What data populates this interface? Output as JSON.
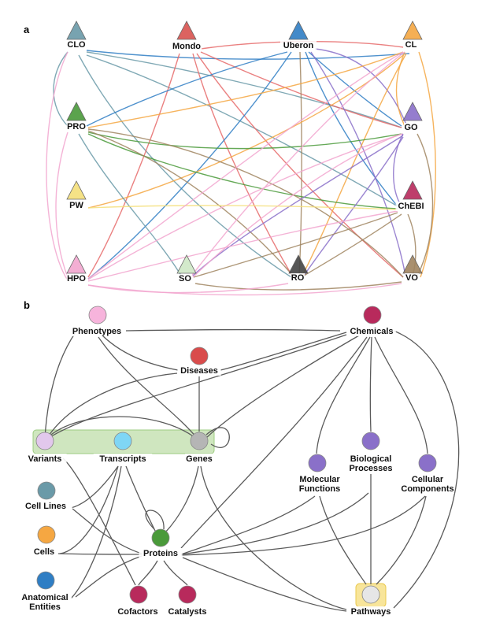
{
  "panel_a": {
    "label": "a",
    "nodes": {
      "CLO": {
        "label": "CLO",
        "color": "#6a9aa8"
      },
      "Mondo": {
        "label": "Mondo",
        "color": "#d9534f"
      },
      "Uberon": {
        "label": "Uberon",
        "color": "#2f7ec4"
      },
      "CL": {
        "label": "CL",
        "color": "#f5a742"
      },
      "PRO": {
        "label": "PRO",
        "color": "#4a9a3a"
      },
      "GO": {
        "label": "GO",
        "color": "#8a70c9"
      },
      "PW": {
        "label": "PW",
        "color": "#f5df7a"
      },
      "ChEBI": {
        "label": "ChEBI",
        "color": "#b82a5c"
      },
      "HPO": {
        "label": "HPO",
        "color": "#f2a6cf"
      },
      "SO": {
        "label": "SO",
        "color": "#cfe8c6"
      },
      "RO": {
        "label": "RO",
        "color": "#444444"
      },
      "VO": {
        "label": "VO",
        "color": "#a08560"
      }
    }
  },
  "panel_b": {
    "label": "b",
    "nodes": {
      "Phenotypes": {
        "label": "Phenotypes",
        "color": "#f7b4dc"
      },
      "Chemicals": {
        "label": "Chemicals",
        "color": "#b82a5c"
      },
      "Diseases": {
        "label": "Diseases",
        "color": "#d94c4c"
      },
      "Variants": {
        "label": "Variants",
        "color": "#e2c8ec"
      },
      "Transcripts": {
        "label": "Transcripts",
        "color": "#7fd6f5"
      },
      "Genes": {
        "label": "Genes",
        "color": "#b5b5b5"
      },
      "MolFunc": {
        "label": [
          "Molecular",
          "Functions"
        ],
        "color": "#8a70c9"
      },
      "BioProc": {
        "label": [
          "Biological",
          "Processes"
        ],
        "color": "#8a70c9"
      },
      "CellComp": {
        "label": [
          "Cellular",
          "Components"
        ],
        "color": "#8a70c9"
      },
      "CellLines": {
        "label": "Cell Lines",
        "color": "#6a9aa8"
      },
      "Cells": {
        "label": "Cells",
        "color": "#f5a742"
      },
      "AnatEnt": {
        "label": [
          "Anatomical",
          "Entities"
        ],
        "color": "#2f7ec4"
      },
      "Proteins": {
        "label": "Proteins",
        "color": "#4a9a3a"
      },
      "Cofactors": {
        "label": "Cofactors",
        "color": "#b82a5c"
      },
      "Catalysts": {
        "label": "Catalysts",
        "color": "#b82a5c"
      },
      "Pathways": {
        "label": "Pathways",
        "color": "#e6e6e6"
      }
    }
  }
}
